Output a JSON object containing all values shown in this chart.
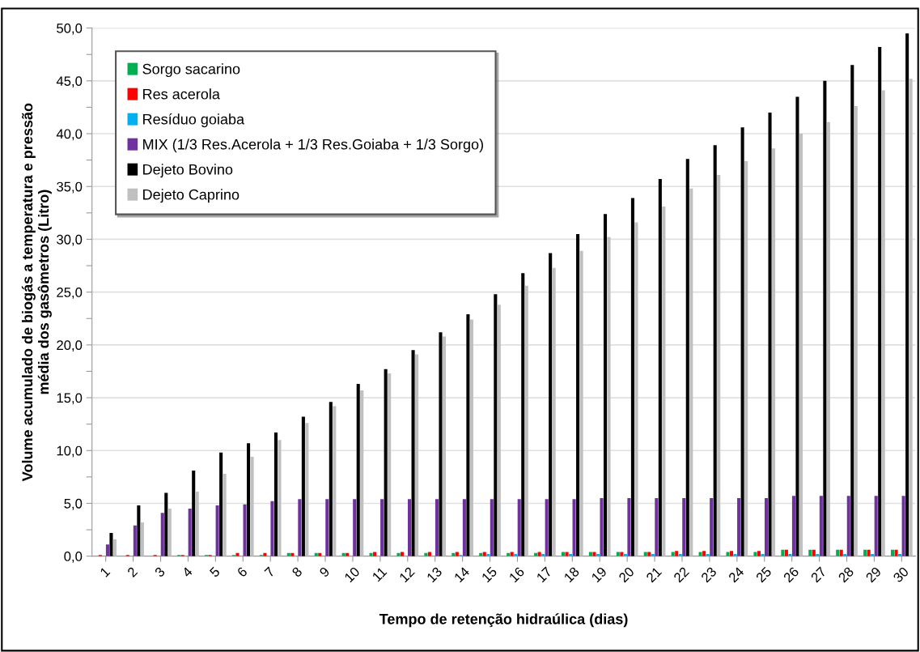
{
  "chart_data": {
    "type": "bar",
    "xlabel": "Tempo de retenção hidraúlica (dias)",
    "ylabel": "Volume acumulado de biogás a temperatura e pressão\nmédia dos gasômetros (Litro)",
    "categories": [
      "1",
      "2",
      "3",
      "4",
      "5",
      "6",
      "7",
      "8",
      "9",
      "10",
      "11",
      "12",
      "13",
      "14",
      "15",
      "16",
      "17",
      "18",
      "19",
      "20",
      "21",
      "22",
      "23",
      "24",
      "25",
      "26",
      "27",
      "28",
      "29",
      "30"
    ],
    "series": [
      {
        "name": "Sorgo sacarino",
        "color": "#00b050",
        "values": [
          0,
          0,
          0,
          0.1,
          0.1,
          0.1,
          0.1,
          0.3,
          0.3,
          0.3,
          0.3,
          0.3,
          0.3,
          0.3,
          0.3,
          0.3,
          0.3,
          0.4,
          0.4,
          0.4,
          0.4,
          0.4,
          0.4,
          0.4,
          0.4,
          0.6,
          0.6,
          0.6,
          0.6,
          0.6
        ]
      },
      {
        "name": "Res acerola",
        "color": "#ff0000",
        "values": [
          0.1,
          0.1,
          0.1,
          0.1,
          0.1,
          0.3,
          0.3,
          0.3,
          0.3,
          0.3,
          0.4,
          0.4,
          0.4,
          0.4,
          0.4,
          0.4,
          0.4,
          0.4,
          0.4,
          0.4,
          0.4,
          0.5,
          0.5,
          0.5,
          0.5,
          0.6,
          0.6,
          0.6,
          0.6,
          0.6
        ]
      },
      {
        "name": "Resíduo goiaba",
        "color": "#00b0f0",
        "values": [
          0,
          0,
          0,
          0,
          0,
          0,
          0,
          0,
          0,
          0,
          0,
          0,
          0,
          0.1,
          0.2,
          0.2,
          0.2,
          0.2,
          0.2,
          0.2,
          0.2,
          0.2,
          0.2,
          0.2,
          0.2,
          0.2,
          0.2,
          0.2,
          0.2,
          0.2
        ]
      },
      {
        "name": "MIX (1/3 Res.Acerola + 1/3 Res.Goiaba + 1/3 Sorgo)",
        "color": "#7030a0",
        "values": [
          1.1,
          2.9,
          4.1,
          4.5,
          4.8,
          4.9,
          5.2,
          5.4,
          5.4,
          5.4,
          5.4,
          5.4,
          5.4,
          5.4,
          5.4,
          5.4,
          5.4,
          5.4,
          5.5,
          5.5,
          5.5,
          5.5,
          5.5,
          5.5,
          5.5,
          5.7,
          5.7,
          5.7,
          5.7,
          5.7
        ]
      },
      {
        "name": "Dejeto Bovino",
        "color": "#000000",
        "values": [
          2.2,
          4.8,
          6.0,
          8.1,
          9.8,
          10.7,
          11.7,
          13.2,
          14.6,
          16.3,
          17.7,
          19.5,
          21.2,
          22.9,
          24.8,
          26.8,
          28.7,
          30.5,
          32.4,
          33.9,
          35.7,
          37.6,
          38.9,
          40.6,
          42.0,
          43.5,
          45.0,
          46.5,
          48.2,
          49.5
        ]
      },
      {
        "name": "Dejeto Caprino",
        "color": "#c0c0c0",
        "values": [
          1.6,
          3.2,
          4.5,
          6.1,
          7.8,
          9.4,
          11.0,
          12.6,
          14.2,
          15.7,
          17.3,
          19.1,
          20.8,
          22.4,
          23.8,
          25.6,
          27.3,
          28.9,
          30.2,
          31.6,
          33.1,
          34.8,
          36.1,
          37.4,
          38.6,
          40.0,
          41.1,
          42.6,
          44.1,
          45.2
        ]
      }
    ],
    "ylim": [
      0,
      50
    ],
    "yticks": [
      {
        "value": 0,
        "label": "0,0"
      },
      {
        "value": 2.5,
        "label": null
      },
      {
        "value": 5,
        "label": "5,0"
      },
      {
        "value": 7.5,
        "label": null
      },
      {
        "value": 10,
        "label": "10,0"
      },
      {
        "value": 12.5,
        "label": null
      },
      {
        "value": 15,
        "label": "15,0"
      },
      {
        "value": 17.5,
        "label": null
      },
      {
        "value": 20,
        "label": "20,0"
      },
      {
        "value": 22.5,
        "label": null
      },
      {
        "value": 25,
        "label": "25,0"
      },
      {
        "value": 27.5,
        "label": null
      },
      {
        "value": 30,
        "label": "30,0"
      },
      {
        "value": 32.5,
        "label": null
      },
      {
        "value": 35,
        "label": "35,0"
      },
      {
        "value": 37.5,
        "label": null
      },
      {
        "value": 40,
        "label": "40,0"
      },
      {
        "value": 42.5,
        "label": null
      },
      {
        "value": 45,
        "label": "45,0"
      },
      {
        "value": 47.5,
        "label": null
      },
      {
        "value": 50,
        "label": "50,0"
      }
    ],
    "grid": "y",
    "legend": "top left"
  }
}
